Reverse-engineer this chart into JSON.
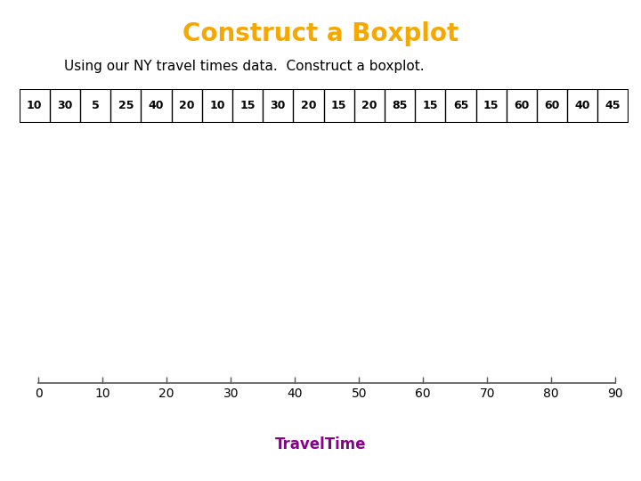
{
  "title": "Construct a Boxplot",
  "title_color": "#F5A800",
  "subtitle": "Using our NY travel times data.  Construct a boxplot.",
  "subtitle_color": "#000000",
  "data": [
    10,
    30,
    5,
    25,
    40,
    20,
    10,
    15,
    30,
    20,
    15,
    20,
    85,
    15,
    65,
    15,
    60,
    60,
    40,
    45
  ],
  "xlabel": "TravelTime",
  "xlabel_color": "#8B008B",
  "axis_min": 0,
  "axis_max": 90,
  "axis_step": 10,
  "background_color": "#ffffff",
  "table_border_color": "#000000",
  "table_text_color": "#000000",
  "table_fontsize": 9,
  "title_fontsize": 20,
  "subtitle_fontsize": 11,
  "xlabel_fontsize": 12
}
